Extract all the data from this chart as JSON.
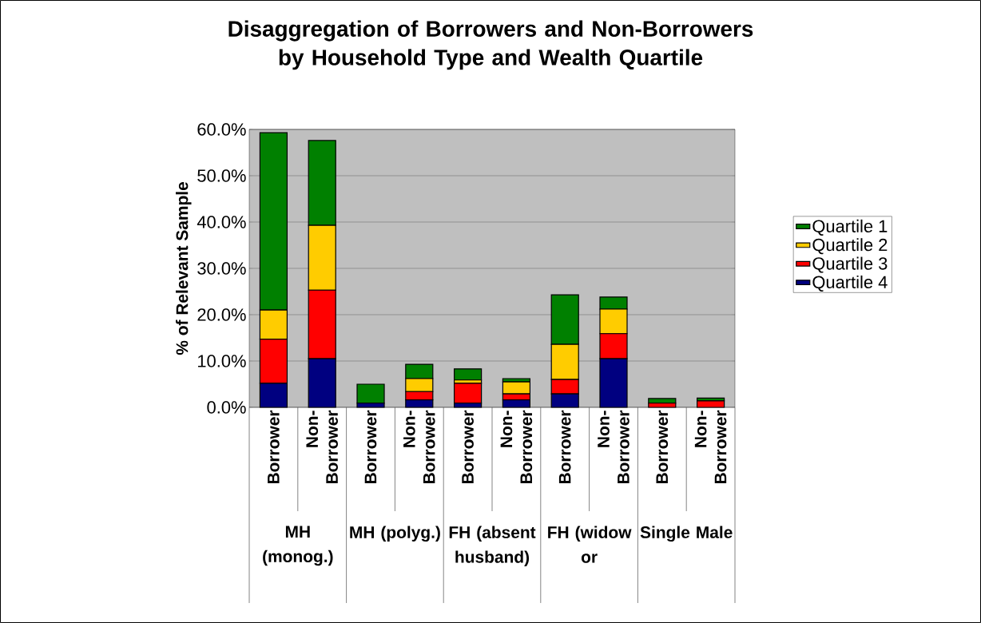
{
  "chart_data": {
    "type": "bar",
    "stacked": true,
    "title": "Disaggregation of Borrowers and Non-Borrowers by Household Type and Wealth Quartile",
    "ylabel": "% of Relevant Sample",
    "categories": [
      "Borrower",
      "Non-Borrower",
      "Borrower",
      "Non-Borrower",
      "Borrower",
      "Non-Borrower",
      "Borrower",
      "Non-Borrower",
      "Borrower",
      "Non-Borrower"
    ],
    "annotations": [
      "MH (monog.)",
      "MH (polyg.)",
      "FH (absent husband)",
      "FH (widow or",
      "Single Male"
    ],
    "series": [
      {
        "name": "Quartile 4",
        "color": "#000080",
        "values": [
          5.2,
          10.5,
          0.9,
          1.6,
          0.9,
          1.6,
          2.9,
          10.5,
          0,
          0
        ]
      },
      {
        "name": "Quartile 3",
        "color": "#ff0000",
        "values": [
          9.5,
          14.8,
          0,
          1.8,
          4.3,
          1.3,
          3.1,
          5.4,
          0.9,
          1.4
        ]
      },
      {
        "name": "Quartile 2",
        "color": "#ffcc00",
        "values": [
          6.3,
          14.0,
          0,
          2.8,
          0.7,
          2.6,
          7.6,
          5.3,
          0,
          null
        ]
      },
      {
        "name": "Quartile 1",
        "color": "#008000",
        "values": [
          38.3,
          18.3,
          4.1,
          3.1,
          2.4,
          0.7,
          10.7,
          2.6,
          1.0,
          0.6
        ]
      }
    ],
    "ylim": [
      0,
      60
    ],
    "yticks": [
      {
        "value": 0,
        "label": "0.0%"
      },
      {
        "value": 10,
        "label": "10.0%"
      },
      {
        "value": 20,
        "label": "20.0%"
      },
      {
        "value": 30,
        "label": "30.0%"
      },
      {
        "value": 40,
        "label": "40.0%"
      },
      {
        "value": 50,
        "label": "50.0%"
      },
      {
        "value": 60,
        "label": "60.0%"
      }
    ],
    "grid": "y",
    "legend": "right"
  }
}
